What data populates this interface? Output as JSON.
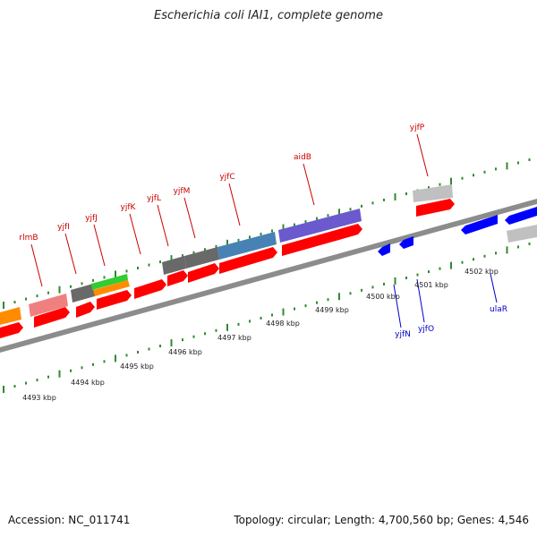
{
  "title": "Escherichia coli IAI1, complete genome",
  "footer": {
    "accession": "Accession: NC_011741",
    "summary": "Topology: circular; Length: 4,700,560 bp; Genes: 4,546"
  },
  "colors": {
    "backbone": "#8c8c8c",
    "forward_label": "#cc0000",
    "reverse_label": "#0000cc",
    "tick": "#228b22"
  },
  "position_labels": [
    "4493 kbp",
    "4494 kbp",
    "4495 kbp",
    "4496 kbp",
    "4497 kbp",
    "4498 kbp",
    "4499 kbp",
    "4500 kbp",
    "4501 kbp",
    "4502 kbp"
  ],
  "forward_labels": [
    "rlmB",
    "yjfI",
    "yjfJ",
    "yjfK",
    "yjfL",
    "yjfM",
    "yjfC",
    "aidB",
    "yjfP"
  ],
  "reverse_labels": [
    "yjfN",
    "yjfO",
    "ulaR"
  ],
  "features": [
    {
      "color": "#ff8c00"
    },
    {
      "color": "#f08080"
    },
    {
      "color": "#696969"
    },
    {
      "color": "#32cd32"
    },
    {
      "color": "#ff8c00"
    },
    {
      "color": "#696969"
    },
    {
      "color": "#696969"
    },
    {
      "color": "#4682b4"
    },
    {
      "color": "#6a5acd"
    },
    {
      "color": "#c0c0c0"
    },
    {
      "color": "#c0c0c0"
    }
  ]
}
